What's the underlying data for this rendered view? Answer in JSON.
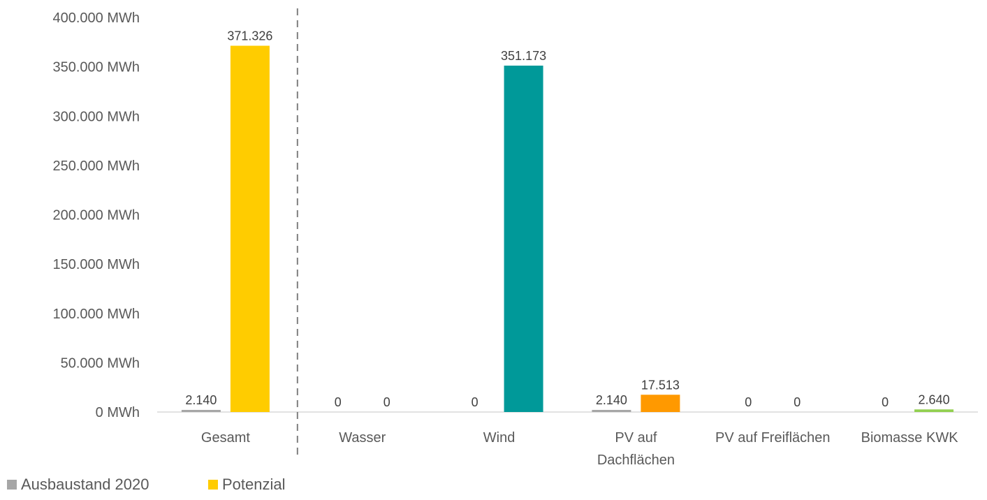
{
  "chart_data": {
    "type": "bar",
    "categories": [
      [
        "Gesamt"
      ],
      [
        "Wasser"
      ],
      [
        "Wind"
      ],
      [
        "PV auf",
        "Dachflächen"
      ],
      [
        "PV auf Freiflächen"
      ],
      [
        "Biomasse KWK"
      ]
    ],
    "series": [
      {
        "name": "Ausbaustand 2020",
        "values": [
          2140,
          0,
          0,
          2140,
          0,
          0
        ],
        "labels": [
          "2.140",
          "0",
          "0",
          "2.140",
          "0",
          "0"
        ],
        "colors": [
          "#a6a6a6",
          "#a6a6a6",
          "#a6a6a6",
          "#a6a6a6",
          "#a6a6a6",
          "#a6a6a6"
        ]
      },
      {
        "name": "Potenzial",
        "values": [
          371326,
          0,
          351173,
          17513,
          0,
          2640
        ],
        "labels": [
          "371.326",
          "0",
          "351.173",
          "17.513",
          "0",
          "2.640"
        ],
        "colors": [
          "#ffcc00",
          "#ffcc00",
          "#009999",
          "#ff9900",
          "#ffcc00",
          "#92d050"
        ]
      }
    ],
    "yticks": [
      "0 MWh",
      "50.000 MWh",
      "100.000 MWh",
      "150.000 MWh",
      "200.000 MWh",
      "250.000 MWh",
      "300.000 MWh",
      "350.000 MWh",
      "400.000 MWh"
    ],
    "ylim": [
      0,
      400000
    ],
    "grid": false,
    "separator_after_category": 0,
    "legend": {
      "position": "bottom-left",
      "items": [
        {
          "label": "Ausbaustand 2020",
          "color": "#a6a6a6"
        },
        {
          "label": "Potenzial",
          "color": "#ffcc00"
        }
      ]
    }
  }
}
